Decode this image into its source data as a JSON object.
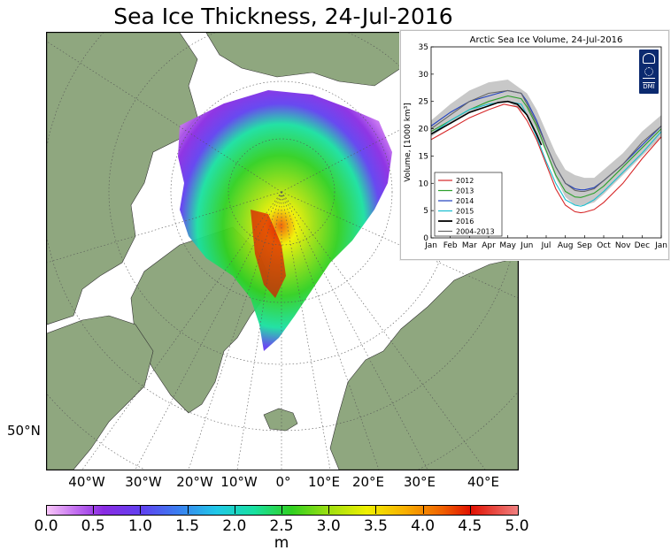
{
  "title": "Sea Ice Thickness, 24-Jul-2016",
  "map": {
    "longitude_labels": [
      "40°W",
      "30°W",
      "20°W",
      "10°W",
      "0°",
      "10°E",
      "20°E",
      "30°E",
      "40°E"
    ],
    "latitude_labels": [
      "50°N"
    ],
    "colors": {
      "land": "#8fa77f",
      "ocean": "#ffffff",
      "grid": "#555555"
    }
  },
  "colorbar": {
    "ticks": [
      "0.0",
      "0.5",
      "1.0",
      "1.5",
      "2.0",
      "2.5",
      "3.0",
      "3.5",
      "4.0",
      "4.5",
      "5.0"
    ],
    "unit": "m",
    "colors": [
      "#f8c6f8",
      "#c470f0",
      "#8a2be2",
      "#6040f0",
      "#3a7ff0",
      "#20c8e8",
      "#18e0a0",
      "#30d020",
      "#a0e010",
      "#f0f000",
      "#f8b000",
      "#f06000",
      "#e01000",
      "#f08080"
    ]
  },
  "inset": {
    "logo_text": "DMI",
    "chart_data": {
      "type": "line",
      "title": "Arctic Sea Ice Volume, 24-Jul-2016",
      "ylabel": "Volume, [1000 km³]",
      "xlabel": "",
      "x_ticks": [
        "Jan",
        "Feb",
        "Mar",
        "Apr",
        "May",
        "Jun",
        "Jul",
        "Aug",
        "Sep",
        "Oct",
        "Nov",
        "Dec",
        "Jan"
      ],
      "y_ticks": [
        "0",
        "5",
        "10",
        "15",
        "20",
        "25",
        "30",
        "35"
      ],
      "ylim": [
        0,
        35
      ],
      "xlim": [
        0,
        12
      ],
      "legend_position": "bottom-left",
      "band": {
        "name": "2004-2013",
        "x": [
          0,
          1,
          2,
          3,
          4,
          5,
          5.5,
          6,
          6.5,
          7,
          7.5,
          8,
          8.5,
          9,
          10,
          11,
          12
        ],
        "lower": [
          18.5,
          21,
          23,
          24.5,
          25,
          22.5,
          19.5,
          15.5,
          11,
          7.5,
          6,
          6,
          6.5,
          8,
          11.5,
          15,
          18.5
        ],
        "upper": [
          21.5,
          24.5,
          27,
          28.5,
          29,
          26.5,
          23.5,
          19.5,
          15.5,
          12.5,
          11.5,
          11,
          11,
          12.5,
          15.5,
          19.5,
          22.5
        ]
      },
      "series": [
        {
          "name": "2012",
          "color": "#d62728",
          "x": [
            0,
            1,
            2,
            3,
            3.8,
            4.5,
            5,
            5.5,
            6,
            6.5,
            7,
            7.5,
            7.8,
            8,
            8.5,
            9,
            10,
            11,
            12
          ],
          "y": [
            18,
            20,
            22,
            23.5,
            24.5,
            24,
            21.5,
            18,
            13.5,
            9,
            6,
            4.8,
            4.6,
            4.7,
            5.2,
            6.5,
            10,
            14.5,
            18.5
          ]
        },
        {
          "name": "2013",
          "color": "#2ca02c",
          "x": [
            0,
            1,
            2,
            3,
            4,
            4.7,
            5,
            5.5,
            6,
            6.5,
            7,
            7.5,
            7.8,
            8,
            8.5,
            9,
            10,
            11,
            12
          ],
          "y": [
            19.5,
            21.5,
            23.5,
            25,
            26,
            25.5,
            24,
            20.5,
            16,
            11.5,
            8.5,
            7.5,
            7.4,
            7.6,
            8.2,
            9.5,
            13,
            16.5,
            20
          ]
        },
        {
          "name": "2014",
          "color": "#1f3fbf",
          "x": [
            0,
            1,
            2,
            3,
            4,
            4.7,
            5,
            5.5,
            6,
            6.5,
            7,
            7.5,
            7.8,
            8,
            8.5,
            9,
            10,
            11,
            12
          ],
          "y": [
            20.5,
            23,
            25,
            26,
            27,
            26.5,
            25,
            21.5,
            17,
            13,
            10,
            9,
            8.8,
            8.8,
            9.2,
            10.5,
            13.5,
            17,
            20.5
          ]
        },
        {
          "name": "2015",
          "color": "#17becf",
          "x": [
            0,
            1,
            2,
            3,
            4,
            4.7,
            5,
            5.5,
            6,
            6.5,
            7,
            7.5,
            7.8,
            8,
            8.5,
            9,
            10,
            11,
            12
          ],
          "y": [
            19,
            21.5,
            23.5,
            24.5,
            25,
            24.5,
            22.5,
            18.5,
            14,
            10,
            7,
            6,
            5.8,
            6,
            7,
            8.5,
            12,
            15.5,
            19.5
          ]
        },
        {
          "name": "2016",
          "color": "#000000",
          "x": [
            0,
            1,
            2,
            3,
            3.5,
            4,
            4.5,
            5,
            5.5,
            5.75
          ],
          "y": [
            19,
            21,
            23,
            24.2,
            24.8,
            25,
            24.5,
            22.5,
            19,
            17
          ]
        },
        {
          "name": "2004-2013",
          "color": "#666666",
          "x": [
            0,
            1,
            2,
            3,
            4,
            4.7,
            5,
            5.5,
            6,
            6.5,
            7,
            7.5,
            7.8,
            8,
            8.5,
            9,
            10,
            11,
            12
          ],
          "y": [
            20,
            22.5,
            25,
            26.5,
            27,
            26.5,
            24.5,
            21,
            17,
            13,
            10,
            8.7,
            8.5,
            8.5,
            9,
            10.5,
            13.5,
            17.5,
            20.5
          ]
        }
      ]
    }
  }
}
